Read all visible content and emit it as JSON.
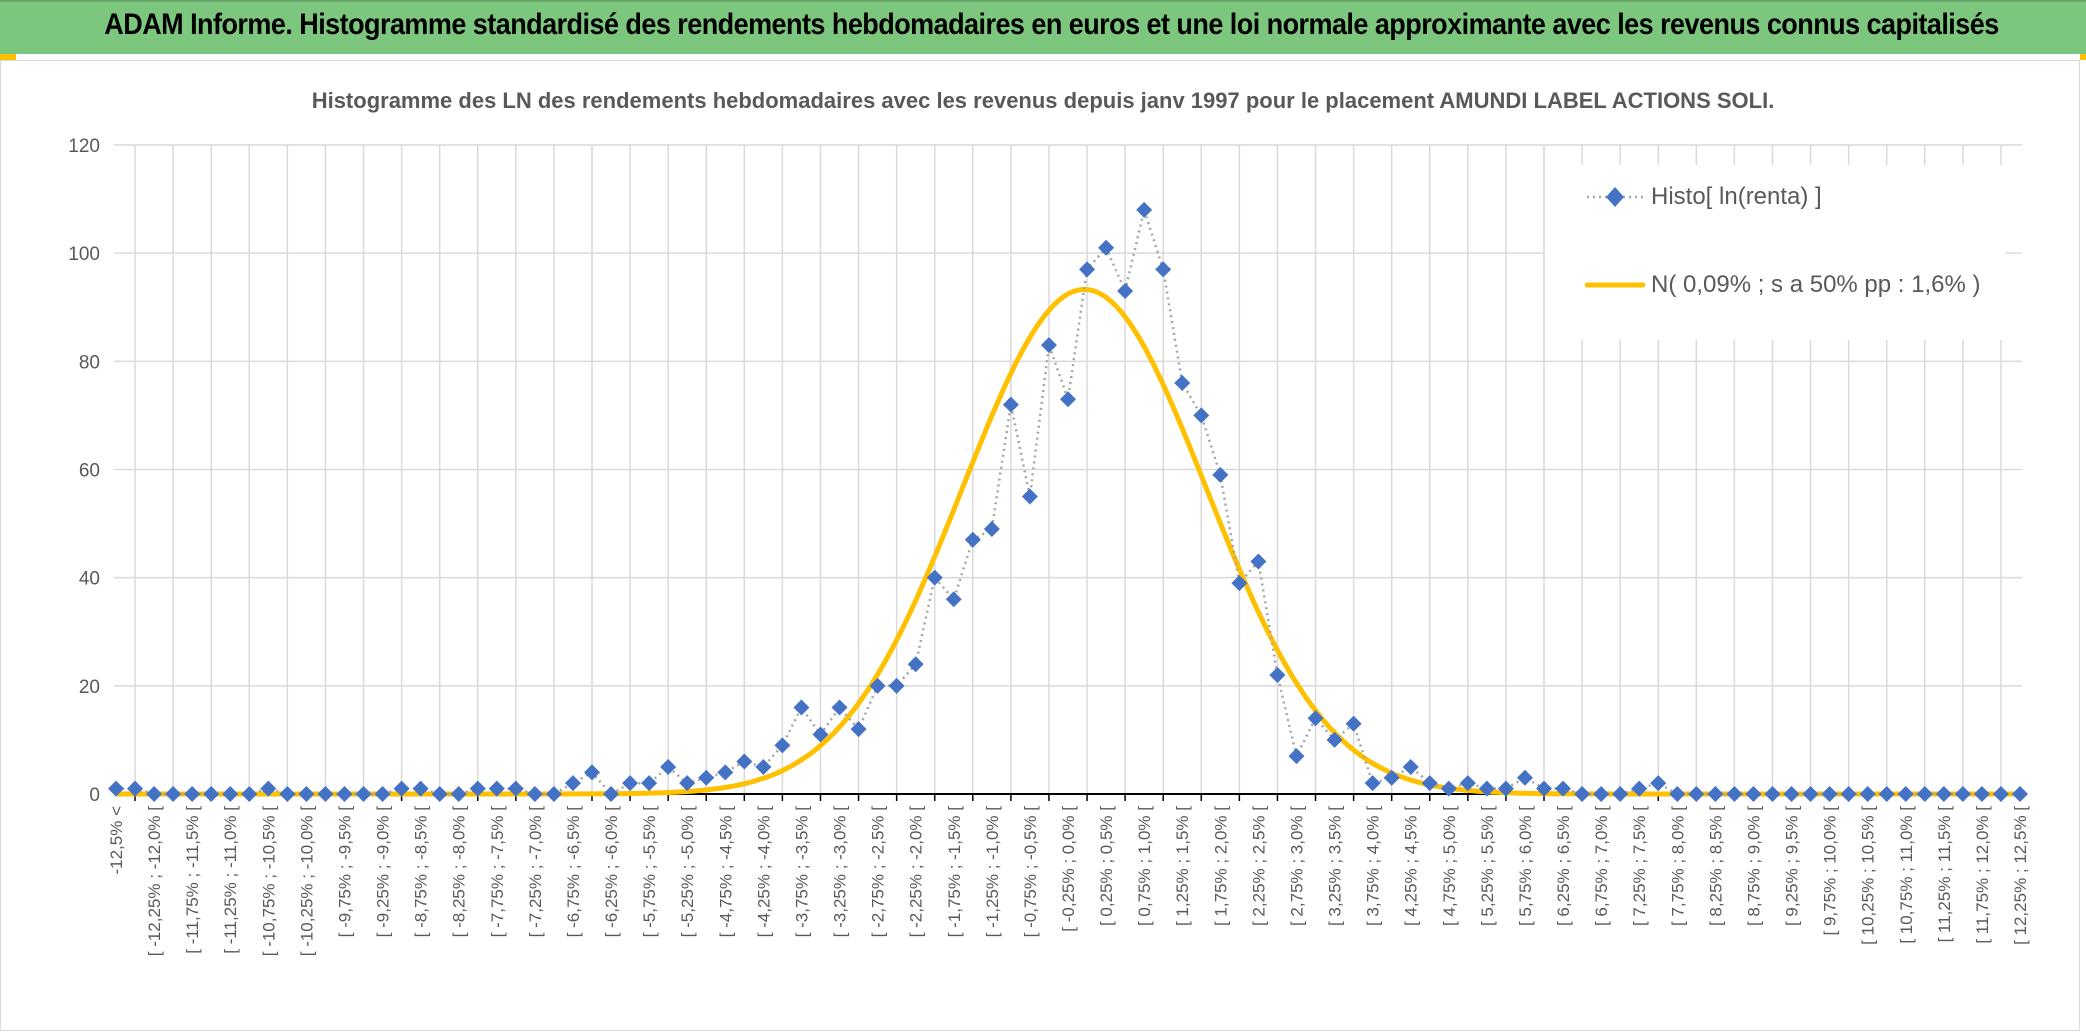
{
  "header": {
    "title": "ADAM Informe. Histogramme standardisé des rendements hebdomadaires en euros et une loi normale approximante avec les revenus connus capitalisés"
  },
  "colors": {
    "header_bg": "#7dc67e",
    "accent": "#ffc000",
    "histo_marker": "#4472c4",
    "histo_line": "#a5a5a5",
    "normal_line": "#ffc000",
    "grid": "#d9d9d9"
  },
  "chart_data": {
    "type": "line",
    "title": "Histogramme des LN des rendements hebdomadaires avec les revenus depuis janv 1997 pour le placement AMUNDI LABEL ACTIONS SOLI.",
    "xlabel": "",
    "ylabel": "",
    "ylim": [
      0,
      120
    ],
    "yticks": [
      "0",
      "20",
      "40",
      "60",
      "80",
      "100",
      "120"
    ],
    "grid": true,
    "legend_position": "top-right",
    "bin_width_pct": 0.25,
    "tick_labels": [
      "-12,5% <",
      "[ -12,25% ; -12,0% [",
      "[ -11,75% ; -11,5% [",
      "[ -11,25% ; -11,0% [",
      "[ -10,75% ; -10,5% [",
      "[ -10,25% ; -10,0% [",
      "[ -9,75% ; -9,5% [",
      "[ -9,25% ; -9,0% [",
      "[ -8,75% ; -8,5% [",
      "[ -8,25% ; -8,0% [",
      "[ -7,75% ; -7,5% [",
      "[ -7,25% ; -7,0% [",
      "[ -6,75% ; -6,5% [",
      "[ -6,25% ; -6,0% [",
      "[ -5,75% ; -5,5% [",
      "[ -5,25% ; -5,0% [",
      "[ -4,75% ; -4,5% [",
      "[ -4,25% ; -4,0% [",
      "[ -3,75% ; -3,5% [",
      "[ -3,25% ; -3,0% [",
      "[ -2,75% ; -2,5% [",
      "[ -2,25% ; -2,0% [",
      "[ -1,75% ; -1,5% [",
      "[ -1,25% ; -1,0% [",
      "[ -0,75% ; -0,5% [",
      "[ -0,25% ; 0,0% [",
      "[ 0,25% ; 0,5% [",
      "[ 0,75% ; 1,0% [",
      "[ 1,25% ; 1,5% [",
      "[ 1,75% ; 2,0% [",
      "[ 2,25% ; 2,5% [",
      "[ 2,75% ; 3,0% [",
      "[ 3,25% ; 3,5% [",
      "[ 3,75% ; 4,0% [",
      "[ 4,25% ; 4,5% [",
      "[ 4,75% ; 5,0% [",
      "[ 5,25% ; 5,5% [",
      "[ 5,75% ; 6,0% [",
      "[ 6,25% ; 6,5% [",
      "[ 6,75% ; 7,0% [",
      "[ 7,25% ; 7,5% [",
      "[ 7,75% ; 8,0% [",
      "[ 8,25% ; 8,5% [",
      "[ 8,75% ; 9,0% [",
      "[ 9,25% ; 9,5% [",
      "[ 9,75% ; 10,0% [",
      "[ 10,25% ; 10,5% [",
      "[ 10,75% ; 11,0% [",
      "[ 11,25% ; 11,5% [",
      "[ 11,75% ; 12,0% [",
      "[ 12,25% ; 12,5% ["
    ],
    "series": [
      {
        "name": "Histo[ ln(renta) ]",
        "style": "dotted-line-diamond-markers",
        "values": [
          1,
          1,
          0,
          0,
          0,
          0,
          0,
          0,
          1,
          0,
          0,
          0,
          0,
          0,
          0,
          1,
          1,
          0,
          0,
          1,
          1,
          1,
          0,
          0,
          2,
          4,
          0,
          2,
          2,
          5,
          2,
          3,
          4,
          6,
          5,
          9,
          16,
          11,
          16,
          12,
          20,
          20,
          24,
          40,
          36,
          47,
          49,
          72,
          55,
          83,
          73,
          97,
          101,
          93,
          108,
          97,
          76,
          70,
          59,
          39,
          43,
          22,
          7,
          14,
          10,
          13,
          2,
          3,
          5,
          2,
          1,
          2,
          1,
          1,
          3,
          1,
          1,
          0,
          0,
          0,
          1,
          2,
          0,
          0,
          0,
          0,
          0,
          0,
          0,
          0,
          0,
          0,
          0,
          0,
          0,
          0,
          0,
          0,
          0,
          0,
          0
        ]
      },
      {
        "name": "N( 0,09% ; s a 50% pp : 1,6% )",
        "style": "solid-line",
        "normal": {
          "mean_pct": 0.09,
          "sd_pct": 1.6,
          "peak": 93.3
        }
      }
    ]
  }
}
